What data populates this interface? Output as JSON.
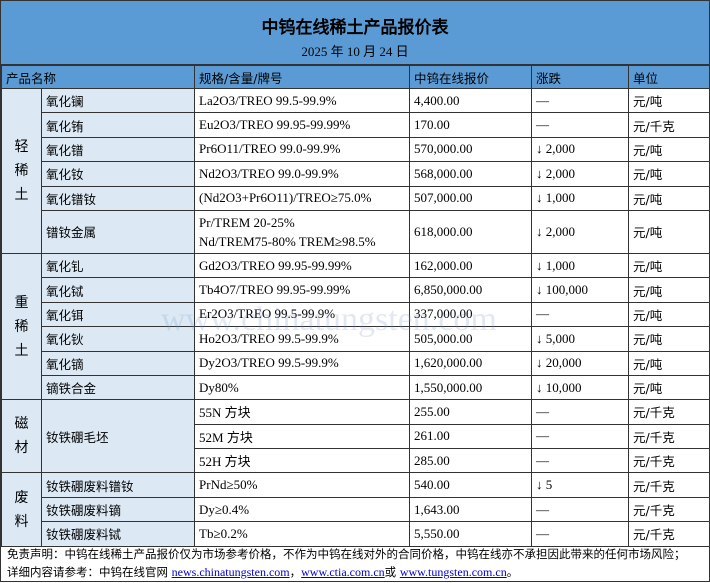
{
  "title": "中钨在线稀土产品报价表",
  "date": "2025 年 10 月 24 日",
  "headers": [
    "产品名称",
    "规格/含量/牌号",
    "中钨在线报价",
    "涨跌",
    "单位"
  ],
  "groups": {
    "light": "轻稀土",
    "heavy": "重稀土",
    "magnet": "磁材",
    "scrap": "废料"
  },
  "rows": [
    {
      "name": "氧化镧",
      "spec": "La2O3/TREO 99.5-99.9%",
      "price": "4,400.00",
      "change": "—",
      "unit": "元/吨"
    },
    {
      "name": "氧化铕",
      "spec": "Eu2O3/TREO 99.95-99.99%",
      "price": "170.00",
      "change": "—",
      "unit": "元/千克"
    },
    {
      "name": "氧化镨",
      "spec": "Pr6O11/TREO 99.0-99.9%",
      "price": "570,000.00",
      "change": "↓ 2,000",
      "unit": "元/吨"
    },
    {
      "name": "氧化钕",
      "spec": "Nd2O3/TREO 99.0-99.9%",
      "price": "568,000.00",
      "change": "↓ 2,000",
      "unit": "元/吨"
    },
    {
      "name": "氧化镨钕",
      "spec": "(Nd2O3+Pr6O11)/TREO≥75.0%",
      "price": "507,000.00",
      "change": "↓ 1,000",
      "unit": "元/吨"
    },
    {
      "name": "镨钕金属",
      "spec": "Pr/TREM 20-25%",
      "spec2": "Nd/TREM75-80% TREM≥98.5%",
      "price": "618,000.00",
      "change": "↓ 2,000",
      "unit": "元/吨"
    },
    {
      "name": "氧化钆",
      "spec": "Gd2O3/TREO 99.95-99.99%",
      "price": "162,000.00",
      "change": "↓ 1,000",
      "unit": "元/吨"
    },
    {
      "name": "氧化铽",
      "spec": "Tb4O7/TREO 99.95-99.99%",
      "price": "6,850,000.00",
      "change": "↓ 100,000",
      "unit": "元/吨"
    },
    {
      "name": "氧化铒",
      "spec": "Er2O3/TREO 99.5-99.9%",
      "price": "337,000.00",
      "change": "—",
      "unit": "元/吨"
    },
    {
      "name": "氧化钬",
      "spec": "Ho2O3/TREO 99.5-99.9%",
      "price": "505,000.00",
      "change": "↓ 5,000",
      "unit": "元/吨"
    },
    {
      "name": "氧化镝",
      "spec": "Dy2O3/TREO 99.5-99.9%",
      "price": "1,620,000.00",
      "change": "↓ 20,000",
      "unit": "元/吨"
    },
    {
      "name": "镝铁合金",
      "spec": "Dy80%",
      "price": "1,550,000.00",
      "change": "↓ 10,000",
      "unit": "元/吨"
    },
    {
      "name": "钕铁硼毛坯",
      "spec": "55N 方块",
      "price": "255.00",
      "change": "—",
      "unit": "元/千克"
    },
    {
      "spec": "52M 方块",
      "price": "261.00",
      "change": "—",
      "unit": "元/千克"
    },
    {
      "spec": "52H 方块",
      "price": "285.00",
      "change": "—",
      "unit": "元/千克"
    },
    {
      "name": "钕铁硼废料镨钕",
      "spec": "PrNd≥50%",
      "price": "540.00",
      "change": "↓ 5",
      "unit": "元/千克"
    },
    {
      "name": "钕铁硼废料镝",
      "spec": "Dy≥0.4%",
      "price": "1,643.00",
      "change": "—",
      "unit": "元/千克"
    },
    {
      "name": "钕铁硼废料铽",
      "spec": "Tb≥0.2%",
      "price": "5,550.00",
      "change": "—",
      "unit": "元/千克"
    }
  ],
  "footer": {
    "disclaimer": "免责声明：中钨在线稀土产品报价仅为市场参考价格，不作为中钨在线对外的合同价格，中钨在线亦不承担因此带来的任何市场风险；",
    "ref": "详细内容请参考：中钨在线官网 ",
    "link1": "news.chinatungsten.com",
    "sep1": "，",
    "link2": "www.ctia.com.cn",
    "sep2": "或 ",
    "link3": "www.tungsten.com.cn",
    "end": "。"
  },
  "watermark": "www.chinatungsten.com"
}
